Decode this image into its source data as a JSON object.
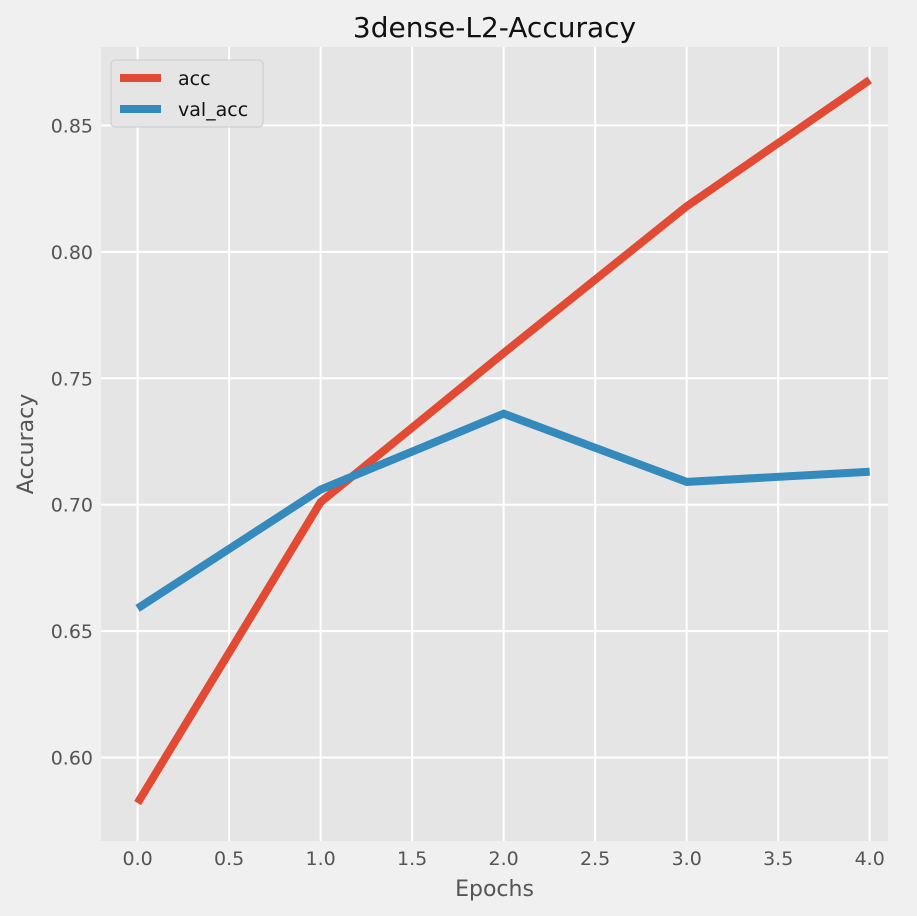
{
  "chart_data": {
    "type": "line",
    "title": "3dense-L2-Accuracy",
    "xlabel": "Epochs",
    "ylabel": "Accuracy",
    "x": [
      0,
      1,
      2,
      3,
      4
    ],
    "series": [
      {
        "name": "acc",
        "values": [
          0.582,
          0.701,
          0.76,
          0.818,
          0.868
        ],
        "color": "#e24a33"
      },
      {
        "name": "val_acc",
        "values": [
          0.659,
          0.706,
          0.736,
          0.709,
          0.713
        ],
        "color": "#348abd"
      }
    ],
    "xlim": [
      -0.2,
      4.1
    ],
    "ylim": [
      0.567,
      0.881
    ],
    "xticks": [
      0.0,
      0.5,
      1.0,
      1.5,
      2.0,
      2.5,
      3.0,
      3.5,
      4.0
    ],
    "xtick_labels": [
      "0.0",
      "0.5",
      "1.0",
      "1.5",
      "2.0",
      "2.5",
      "3.0",
      "3.5",
      "4.0"
    ],
    "yticks": [
      0.6,
      0.65,
      0.7,
      0.75,
      0.8,
      0.85
    ],
    "ytick_labels": [
      "0.60",
      "0.65",
      "0.70",
      "0.75",
      "0.80",
      "0.85"
    ],
    "grid": true,
    "legend_position": "top-left",
    "background": "#e5e5e5",
    "grid_color": "#ffffff"
  }
}
